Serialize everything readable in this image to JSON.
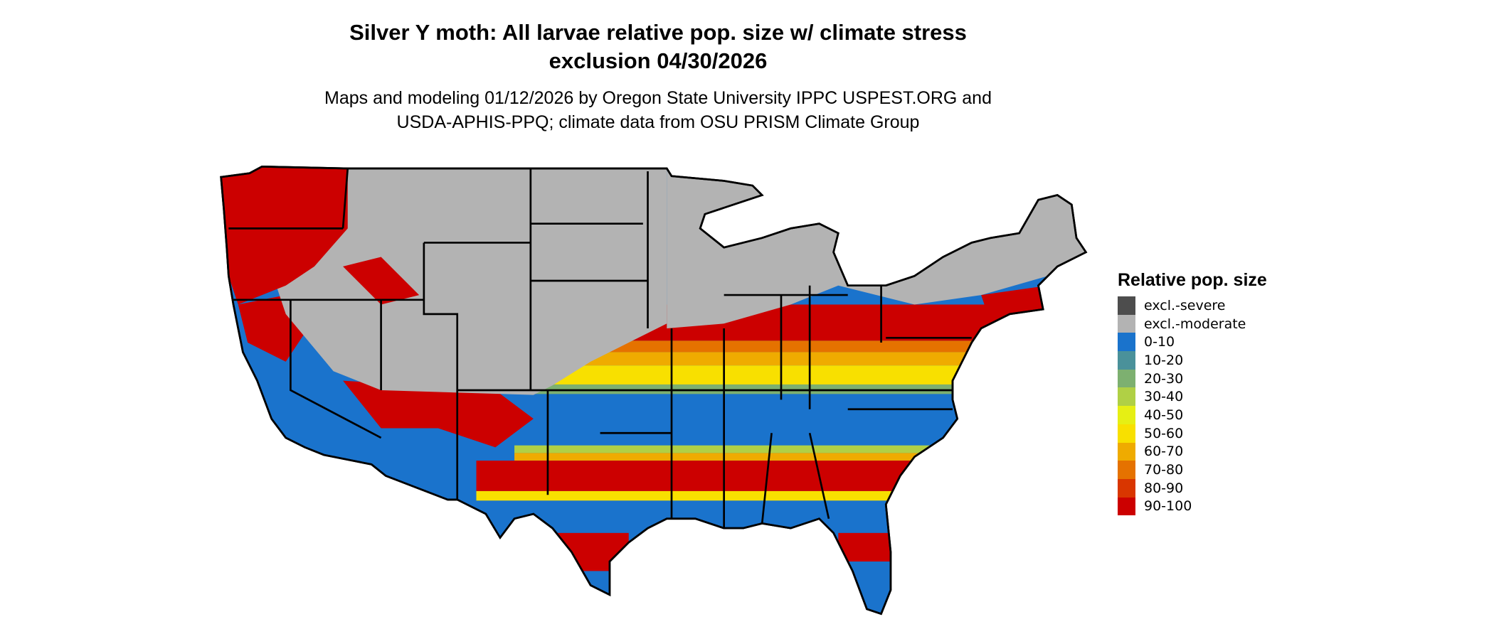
{
  "title_line1": "Silver Y moth: All larvae relative pop. size w/ climate stress",
  "title_line2": "exclusion 04/30/2026",
  "subtitle_line1": "Maps and modeling 01/12/2026 by Oregon State University IPPC USPEST.ORG and",
  "subtitle_line2": "USDA-APHIS-PPQ; climate data from OSU PRISM Climate Group",
  "legend": {
    "title": "Relative pop. size",
    "items": [
      {
        "label": "excl.-severe",
        "color": "#4d4d4d"
      },
      {
        "label": "excl.-moderate",
        "color": "#b3b3b3"
      },
      {
        "label": "0-10",
        "color": "#1a73cc"
      },
      {
        "label": "10-20",
        "color": "#4a919a"
      },
      {
        "label": "20-30",
        "color": "#7db070"
      },
      {
        "label": "30-40",
        "color": "#b0d045"
      },
      {
        "label": "40-50",
        "color": "#e6ef14"
      },
      {
        "label": "50-60",
        "color": "#f8e000"
      },
      {
        "label": "60-70",
        "color": "#efab00"
      },
      {
        "label": "70-80",
        "color": "#e57200"
      },
      {
        "label": "80-90",
        "color": "#d93600"
      },
      {
        "label": "90-100",
        "color": "#cc0000"
      }
    ]
  },
  "map_region": "Contiguous United States"
}
